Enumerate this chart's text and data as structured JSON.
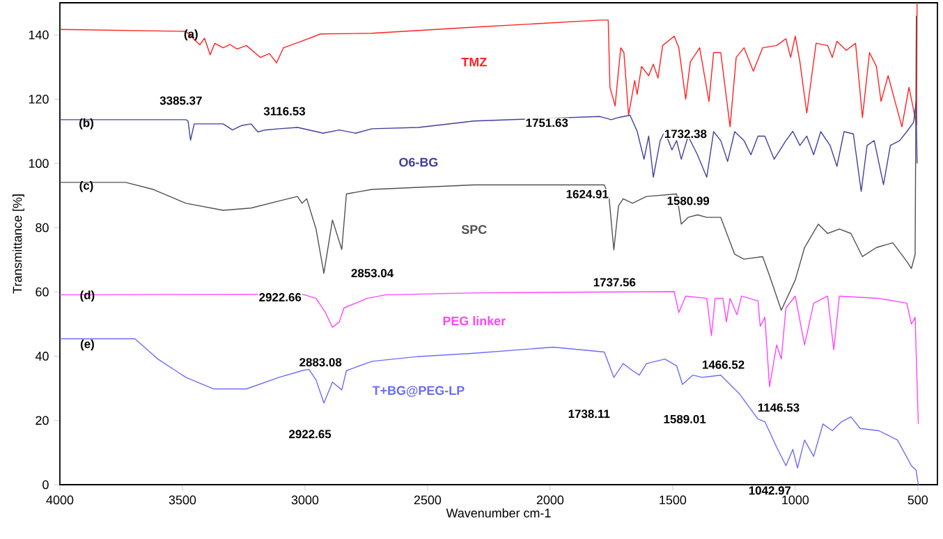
{
  "chart_data": {
    "type": "line",
    "xlabel": "Wavenumber cm-1",
    "ylabel": "Transmittance [%]",
    "xlim": [
      4000,
      420
    ],
    "ylim": [
      0,
      150
    ],
    "xticks": [
      4000,
      3500,
      3000,
      2500,
      2000,
      1500,
      1000,
      500
    ],
    "yticks": [
      0,
      20,
      40,
      60,
      80,
      100,
      120,
      140
    ],
    "grid": false,
    "legend": false,
    "marker": "none",
    "line_style": "solid",
    "series": [
      {
        "name": "TMZ",
        "color": "#ff2020",
        "x": [
          4000,
          3486,
          3429,
          3410,
          3387,
          3368,
          3334,
          3306,
          3277,
          3239,
          3182,
          3145,
          3116,
          3088,
          3012,
          2936,
          2727,
          2310,
          1797,
          1763,
          1756,
          1735,
          1712,
          1699,
          1680,
          1655,
          1645,
          1627,
          1598,
          1579,
          1560,
          1541,
          1494,
          1475,
          1447,
          1428,
          1390,
          1352,
          1333,
          1304,
          1266,
          1241,
          1209,
          1171,
          1133,
          1076,
          1038,
          1019,
          1000,
          981,
          953,
          915,
          868,
          849,
          830,
          792,
          754,
          726,
          697,
          669,
          650,
          621,
          593,
          565,
          536,
          511,
          505,
          503
        ],
        "values": [
          141.7,
          141.1,
          136.9,
          139,
          133.8,
          137.4,
          136,
          137,
          135.6,
          136.7,
          133,
          134.2,
          131.3,
          136,
          138.1,
          140.3,
          140.5,
          142.4,
          144.6,
          144.6,
          123.7,
          117.9,
          136,
          134.5,
          115,
          125.8,
          121.5,
          130.2,
          127.3,
          130.9,
          126.6,
          136.7,
          139.6,
          136,
          120,
          131.6,
          136,
          119.3,
          134.5,
          134.5,
          111.4,
          133,
          136,
          128.7,
          136,
          136.7,
          138.8,
          133,
          139.6,
          131.6,
          115.7,
          137.4,
          136.7,
          133,
          138,
          135.2,
          137.4,
          114.3,
          134.5,
          130.2,
          119.3,
          127.3,
          119.3,
          111.4,
          123.7,
          114.3,
          112,
          150
        ]
      },
      {
        "name": "O6-BG",
        "color": "#3f3f9f",
        "x": [
          4000,
          3486,
          3477,
          3467,
          3452,
          3334,
          3296,
          3258,
          3220,
          3192,
          3163,
          3106,
          3030,
          2926,
          2860,
          2793,
          2727,
          2537,
          2310,
          1797,
          1750,
          1721,
          1674,
          1645,
          1617,
          1598,
          1579,
          1551,
          1532,
          1503,
          1484,
          1465,
          1437,
          1399,
          1361,
          1333,
          1304,
          1276,
          1247,
          1209,
          1181,
          1152,
          1124,
          1086,
          1038,
          1010,
          981,
          953,
          925,
          896,
          858,
          830,
          801,
          763,
          731,
          707,
          678,
          640,
          612,
          574,
          545,
          517,
          507,
          503
        ],
        "values": [
          113.6,
          113.6,
          113.2,
          107.2,
          112.3,
          112.3,
          110.4,
          111.8,
          112.3,
          109.8,
          110.4,
          110.8,
          111.2,
          109.4,
          110.4,
          109.4,
          110.8,
          111.2,
          113.2,
          114.6,
          113.6,
          114.3,
          115,
          110,
          101.3,
          108.5,
          95.7,
          107.1,
          110,
          104.2,
          107.1,
          101.3,
          108.5,
          102.7,
          95.7,
          109.9,
          107.1,
          100.6,
          109.9,
          107.1,
          102.7,
          108.5,
          108.5,
          101.3,
          107.1,
          110,
          105.6,
          108.5,
          102.7,
          109.9,
          105.6,
          99.1,
          109.9,
          109.2,
          91.3,
          105.6,
          107.1,
          93.4,
          105.6,
          107.1,
          109.9,
          112.8,
          119.3,
          100
        ]
      },
      {
        "name": "SPC",
        "color": "#505050",
        "x": [
          4000,
          3732,
          3619,
          3486,
          3334,
          3220,
          3106,
          3031,
          3012,
          2993,
          2955,
          2923,
          2888,
          2850,
          2831,
          2727,
          2310,
          1779,
          1760,
          1740,
          1721,
          1702,
          1664,
          1607,
          1484,
          1465,
          1437,
          1399,
          1361,
          1304,
          1247,
          1209,
          1133,
          1105,
          1057,
          1000,
          962,
          906,
          868,
          820,
          773,
          726,
          669,
          602,
          545,
          526,
          511,
          506
        ],
        "values": [
          94.1,
          94.1,
          91.9,
          87.6,
          85.4,
          86.1,
          88.3,
          89.7,
          87.6,
          89,
          79.6,
          65.8,
          82.4,
          73.2,
          90.5,
          91.9,
          93.3,
          93.3,
          89.7,
          73.1,
          86.8,
          89,
          87.6,
          89.7,
          90.5,
          81.1,
          83.2,
          84,
          83.2,
          83.2,
          71.7,
          70.2,
          71,
          65.1,
          54.3,
          63.7,
          73.8,
          81.1,
          78.2,
          79.6,
          78.2,
          71,
          73.8,
          75.3,
          69.5,
          67.3,
          71.7,
          146
        ]
      },
      {
        "name": "PEG linker",
        "color": "#ff44ff",
        "x": [
          4000,
          3012,
          2955,
          2917,
          2888,
          2860,
          2841,
          2746,
          2670,
          2310,
          1494,
          1475,
          1447,
          1361,
          1342,
          1327,
          1295,
          1281,
          1266,
          1238,
          1219,
          1152,
          1143,
          1124,
          1105,
          1076,
          1057,
          1038,
          1000,
          962,
          925,
          868,
          843,
          820,
          659,
          545,
          526,
          511,
          498
        ],
        "values": [
          59.1,
          59.3,
          58,
          53.6,
          49,
          50.7,
          55,
          58,
          59.1,
          59.7,
          60.1,
          53.6,
          58.7,
          58,
          46.4,
          58,
          58,
          50.7,
          58,
          52.9,
          58.7,
          57.2,
          49.3,
          52.1,
          30.5,
          43.5,
          39.1,
          55,
          58.7,
          43.5,
          56.5,
          58.7,
          42,
          58.7,
          58,
          56.5,
          50,
          52.1,
          18.9
        ]
      },
      {
        "name": "T+BG@PEG-LP",
        "color": "#6b6bff",
        "x": [
          4000,
          3694,
          3600,
          3486,
          3372,
          3239,
          3106,
          3012,
          2984,
          2955,
          2923,
          2888,
          2850,
          2831,
          2727,
          2537,
          2310,
          1987,
          1779,
          1740,
          1702,
          1664,
          1636,
          1607,
          1532,
          1484,
          1460,
          1418,
          1380,
          1304,
          1228,
          1152,
          1124,
          1076,
          1038,
          1010,
          991,
          962,
          925,
          887,
          849,
          811,
          773,
          735,
          659,
          583,
          526,
          507,
          498
        ],
        "values": [
          45.4,
          45.4,
          39.1,
          33.4,
          29.8,
          29.8,
          33.4,
          35.5,
          35.9,
          32.6,
          25.4,
          31.9,
          29.5,
          35.5,
          38.4,
          39.9,
          40.9,
          42.8,
          41.3,
          33.4,
          37.7,
          35.5,
          34.1,
          37.7,
          39.1,
          37,
          31.2,
          34.1,
          33.4,
          34.1,
          28.3,
          20.4,
          19.6,
          11.7,
          5.9,
          11,
          5.2,
          13.9,
          8.8,
          18.9,
          16.8,
          19.6,
          21.1,
          17.5,
          16.8,
          13.9,
          5.9,
          4.5,
          0
        ]
      }
    ],
    "annotations": [
      {
        "text": "(a)",
        "x": 3465,
        "y": 140
      },
      {
        "text": "(b)",
        "x": 3892,
        "y": 112.3
      },
      {
        "text": "(c)",
        "x": 3892,
        "y": 92.8
      },
      {
        "text": "(d)",
        "x": 3888,
        "y": 58.7
      },
      {
        "text": "(e)",
        "x": 3888,
        "y": 43.5
      },
      "3385.37",
      "3116.53",
      "1751.63",
      "1732.38",
      "1624.91",
      "1580.99",
      "2853.04",
      "2922.66",
      "1737.56",
      "2883.08",
      "2922.65",
      "1466.52",
      "1146.53",
      "1738.11",
      "1589.01",
      "1042.97"
    ]
  }
}
